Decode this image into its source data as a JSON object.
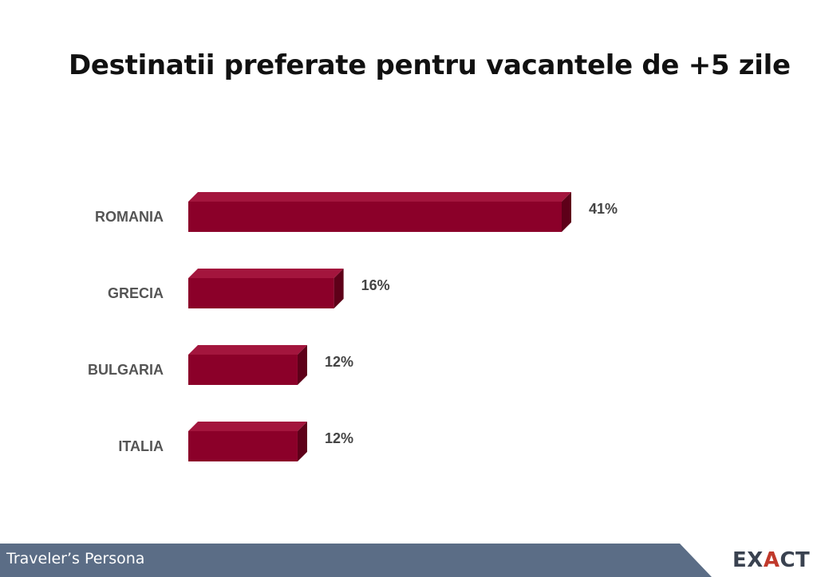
{
  "page": {
    "title": "Destinatii preferate pentru vacantele de +5 zile"
  },
  "chart_data": {
    "type": "bar",
    "orientation": "horizontal",
    "categories": [
      "ROMANIA",
      "GRECIA",
      "BULGARIA",
      "ITALIA"
    ],
    "values": [
      41,
      16,
      12,
      12
    ],
    "value_labels": [
      "41%",
      "16%",
      "12%",
      "12%"
    ],
    "unit": "%",
    "xlim": [
      0,
      41
    ],
    "grid": false,
    "legend": "none",
    "bar_color": "#8b0029"
  },
  "footer": {
    "text": "Traveler’s Persona",
    "band_color": "#5b6d86",
    "logo_prefix": "EX",
    "logo_accent": "A",
    "logo_suffix": "CT"
  }
}
